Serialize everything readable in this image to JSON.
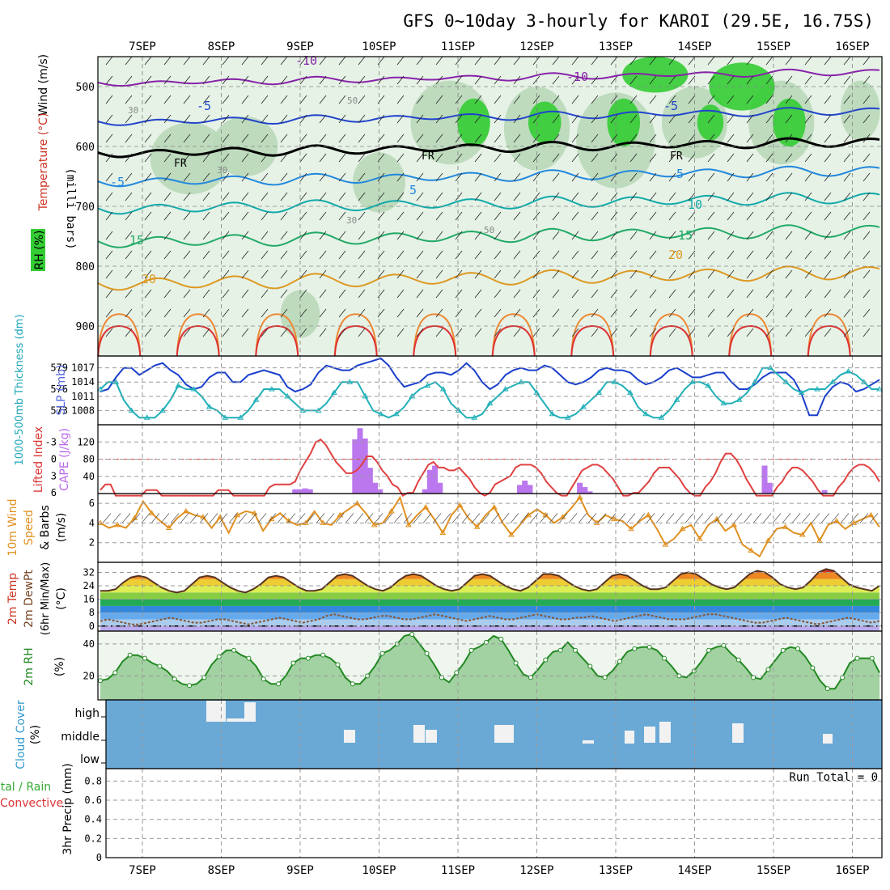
{
  "title": "GFS 0~10day 3-hourly for KAROI (29.5E, 16.75S)",
  "days": [
    "7SEP",
    "8SEP",
    "9SEP",
    "10SEP",
    "11SEP",
    "12SEP",
    "13SEP",
    "14SEP",
    "15SEP",
    "16SEP"
  ],
  "colors": {
    "frame": "#000000",
    "grid": "#9a9a9a",
    "rh_light": "#e6f2e6",
    "rh_mid": "#b9d8b9",
    "rh_dark": "#7fbf7f",
    "rh_high": "#33cc33",
    "cloud_bg": "#6aa9d6",
    "cape_bar": "#bb77ee",
    "li_line": "#e04040",
    "slp_line": "#1a3fcc",
    "thick_line": "#20b0b8",
    "wind_line": "#e09020",
    "rh2m_fill": "#8ec98e",
    "rh2m_line": "#228822"
  },
  "chart_data": [
    {
      "panel": "pressure-cross-section",
      "type": "heatmap",
      "ylabel_parts": [
        "Wind (m/s)",
        "Temperature (°C)",
        "RH (%)"
      ],
      "ylabel2": "(milli bars)",
      "y_ticks": [
        500,
        600,
        700,
        800,
        900
      ],
      "ylim": [
        450,
        950
      ],
      "temperature_contour_labels": [
        "-10",
        "-10",
        "-5",
        "-5",
        "-5",
        "5",
        "5",
        "10",
        "15",
        "15",
        "20",
        "20"
      ],
      "rh_contour_labels": [
        "30",
        "30",
        "50",
        "50",
        "30"
      ],
      "freezing_labels": [
        "FR",
        "FR",
        "FR"
      ]
    },
    {
      "panel": "slp-thickness",
      "type": "line",
      "ylabel_left": "1000-500mb Thickness (dm)",
      "ylabel_right": "SLP (mb)",
      "left_ticks": [
        579,
        576,
        573
      ],
      "right_ticks": [
        1017,
        1014,
        1011,
        1008
      ],
      "ylim_slp": [
        1005,
        1019.5
      ],
      "series": [
        {
          "name": "SLP (mb)",
          "values": [
            1012,
            1012.5,
            1015,
            1017,
            1017,
            1015.5,
            1016.5,
            1017.5,
            1018,
            1016.5,
            1015.5,
            1013.5,
            1012.5,
            1013,
            1015,
            1016,
            1016,
            1014,
            1014,
            1015.5,
            1016,
            1016.5,
            1016,
            1015.5,
            1013,
            1012,
            1012.5,
            1013.5,
            1016,
            1017.5,
            1017,
            1016.5,
            1016.5,
            1017.5,
            1018,
            1018.5,
            1019,
            1017.5,
            1015,
            1013,
            1013.5,
            1014,
            1015.5,
            1016,
            1016,
            1015.5,
            1016.5,
            1018,
            1016.5,
            1014,
            1012.5,
            1013.5,
            1015.5,
            1016.5,
            1017,
            1016.5,
            1016.5,
            1017.5,
            1017,
            1015.5,
            1014,
            1013.5,
            1014,
            1015,
            1016.5,
            1017,
            1016.5,
            1016.5,
            1016,
            1014.5,
            1013.5,
            1014,
            1015,
            1016.5,
            1017,
            1016,
            1015,
            1015,
            1015.5,
            1016,
            1016,
            1014,
            1012.5,
            1012.5,
            1013.5,
            1015,
            1016,
            1016,
            1016,
            1014.5,
            1011.5,
            1007,
            1007,
            1011,
            1013,
            1014,
            1013.5,
            1012,
            1012.5,
            1013.5,
            1014.5
          ]
        },
        {
          "name": "Thickness (dm)",
          "values": [
            576,
            577,
            577,
            574.5,
            573,
            572,
            572,
            572,
            573,
            574.5,
            576.5,
            576,
            576,
            575,
            573.5,
            573,
            572,
            572,
            572,
            573,
            574.5,
            576,
            576,
            576,
            575,
            574,
            573,
            573,
            573,
            574,
            575.5,
            577,
            577,
            577,
            575,
            573,
            572.5,
            572,
            572.5,
            573.5,
            575,
            576,
            576.5,
            577,
            576,
            574,
            573,
            572,
            572,
            572.5,
            574,
            575,
            576,
            576.5,
            577,
            577,
            575.5,
            574,
            572.5,
            572,
            572,
            572.5,
            573.5,
            574.5,
            575.5,
            577,
            577,
            576.5,
            575.5,
            573.5,
            572.5,
            572,
            572,
            573,
            574.5,
            576,
            577,
            577,
            576.5,
            575,
            574,
            574,
            574.5,
            575.5,
            577,
            579,
            579,
            578,
            577,
            576,
            575.5,
            576,
            576,
            576,
            577,
            578,
            578.5,
            578,
            577,
            576,
            576
          ]
        }
      ]
    },
    {
      "panel": "lifted-index-cape",
      "type": "bar",
      "ylabel_left": "Lifted Index",
      "ylabel_right": "CAPE (J/kg)",
      "li_ticks": [
        -3,
        0,
        3,
        6
      ],
      "cape_ticks": [
        40,
        80,
        120
      ],
      "ylim_cape": [
        0,
        160
      ],
      "series": [
        {
          "name": "CAPE (J/kg)",
          "values": [
            0,
            0,
            0,
            0,
            0,
            0,
            0,
            0,
            0,
            0,
            0,
            0,
            0,
            0,
            0,
            0,
            0,
            0,
            0,
            0,
            0,
            0,
            0,
            0,
            0,
            0,
            0,
            0,
            0,
            0,
            0,
            0,
            0,
            0,
            0,
            0,
            0,
            0,
            0,
            10,
            10,
            12,
            10,
            0,
            0,
            0,
            0,
            0,
            0,
            0,
            0,
            126,
            152,
            128,
            60,
            25,
            10,
            0,
            0,
            0,
            0,
            0,
            0,
            0,
            0,
            10,
            55,
            65,
            25,
            0,
            0,
            0,
            0,
            0,
            0,
            0,
            0,
            0,
            0,
            0,
            0,
            0,
            0,
            0,
            20,
            30,
            20,
            0,
            0,
            0,
            0,
            0,
            0,
            0,
            0,
            0,
            25,
            15,
            5,
            0,
            0,
            0,
            0,
            0,
            0,
            0,
            0,
            0,
            0,
            0,
            0,
            0,
            0,
            0,
            0,
            0,
            0,
            0,
            0,
            0,
            0,
            0,
            0,
            0,
            0,
            0,
            0,
            0,
            0,
            0,
            0,
            0,
            0,
            65,
            25,
            0,
            0,
            0,
            0,
            0,
            0,
            0,
            0,
            0,
            0,
            8,
            0,
            0,
            0,
            0,
            0,
            0,
            0,
            0,
            0,
            0,
            0
          ]
        },
        {
          "name": "Lifted Index",
          "values": [
            5.5,
            4.5,
            4.5,
            6.5,
            6.5,
            6.5,
            6.5,
            6.5,
            6.5,
            5.5,
            5.5,
            5.5,
            6.5,
            6.5,
            6.5,
            6.5,
            6.5,
            6.5,
            6.5,
            6.5,
            6.5,
            6.5,
            6.5,
            5.5,
            5.5,
            5.5,
            6.5,
            6.5,
            6.5,
            6.5,
            6.5,
            6.5,
            6.5,
            5,
            4.5,
            4.5,
            4.5,
            4.5,
            4,
            2,
            0.5,
            -1,
            -3,
            -3.5,
            -2.5,
            -1,
            0.5,
            1.5,
            2.5,
            2.5,
            2,
            1,
            -0.5,
            -0.5,
            0.5,
            2,
            3,
            4.5,
            5,
            6.5,
            6,
            6,
            4,
            2.5,
            1,
            0.5,
            1.5,
            1.5,
            2,
            2,
            1.5,
            2.5,
            3.5,
            5,
            6,
            6.5,
            6,
            4.5,
            4,
            3.5,
            3,
            1.5,
            1,
            1,
            1,
            1.5,
            2.5,
            4,
            5,
            6,
            6.5,
            6.5,
            5,
            3.5,
            2,
            1.5,
            1,
            1,
            1.5,
            2.5,
            3.5,
            5,
            6.5,
            6.5,
            6,
            6,
            5,
            4,
            2.5,
            1.5,
            1.5,
            1.5,
            2.5,
            3.5,
            5,
            6,
            6.5,
            6.5,
            5,
            4,
            2.5,
            0.5,
            -1,
            -1,
            0,
            1.5,
            3.5,
            5,
            6.5,
            6.5,
            6.5,
            6.5,
            5,
            4,
            2.5,
            1.5,
            1.5,
            2,
            3,
            4,
            5.5,
            6.5,
            6.5,
            6.5,
            5,
            4,
            2.5,
            1.5,
            1,
            1,
            1.5,
            2.5,
            4
          ]
        }
      ]
    },
    {
      "panel": "10m-wind",
      "type": "line",
      "ylabel_parts": [
        "10m Wind",
        "Speed",
        "& Barbs",
        "(m/s)"
      ],
      "y_ticks": [
        2,
        4,
        6
      ],
      "ylim": [
        0,
        7
      ],
      "series": [
        {
          "name": "10m Wind Speed",
          "values": [
            4,
            3.5,
            3.8,
            3.5,
            4.5,
            6.2,
            5,
            4.2,
            3.5,
            4.5,
            5.2,
            4.8,
            4.6,
            3.5,
            4.6,
            3,
            4.8,
            5.2,
            5,
            3.2,
            4.4,
            5,
            4.2,
            3.8,
            4,
            5.2,
            4,
            3.8,
            4.8,
            5.4,
            6,
            5,
            3.8,
            4,
            5.2,
            6.6,
            3.8,
            4.8,
            5.6,
            4.4,
            3,
            4.8,
            5.8,
            4.5,
            3.6,
            4.8,
            5.6,
            4,
            2.8,
            3.8,
            4.8,
            5.4,
            4.8,
            4,
            4.6,
            5.5,
            6.6,
            4.8,
            4,
            4.8,
            4.4,
            4.2,
            3.4,
            4.2,
            4.8,
            3.4,
            1.8,
            2.4,
            3.4,
            3.8,
            2.4,
            3.8,
            4.4,
            3.2,
            3.8,
            1.8,
            1.2,
            0.6,
            2.2,
            3.4,
            3.6,
            3,
            2.8,
            4,
            2.2,
            3.8,
            4.2,
            3.4,
            4,
            4.4,
            4.8,
            3.6
          ]
        }
      ]
    },
    {
      "panel": "2m-temp-dewpt",
      "type": "area",
      "ylabel_parts": [
        "2m Temp",
        "2m DewPt",
        "(6hr Min/Max)",
        "(°C)"
      ],
      "y_ticks": [
        0,
        8,
        16,
        24,
        32
      ],
      "ylim": [
        -3,
        38
      ],
      "series": [
        {
          "name": "2m Temp",
          "values": [
            21,
            21,
            22,
            26,
            29,
            30,
            29,
            26,
            23,
            21,
            20,
            21,
            25,
            29,
            30,
            29,
            26,
            23,
            21,
            20,
            22,
            25,
            29,
            30,
            29,
            26,
            23,
            21,
            21,
            22,
            26,
            30,
            31,
            30,
            27,
            24,
            22,
            21,
            23,
            27,
            30,
            31,
            30,
            27,
            24,
            22,
            21,
            22,
            26,
            30,
            31,
            30,
            27,
            24,
            22,
            21,
            23,
            27,
            31,
            31,
            30,
            27,
            24,
            22,
            21,
            22,
            26,
            30,
            31,
            30,
            27,
            24,
            22,
            22,
            23,
            27,
            31,
            32,
            31,
            28,
            25,
            23,
            22,
            23,
            27,
            31,
            33,
            32,
            29,
            25,
            23,
            22,
            23,
            27,
            32,
            34,
            33,
            29,
            25,
            23,
            22,
            21,
            24
          ]
        },
        {
          "name": "2m DewPt",
          "values": [
            3,
            4,
            3,
            2,
            1,
            1,
            2,
            3,
            4,
            5,
            4,
            3,
            2,
            2,
            3,
            4,
            4,
            3,
            2,
            1,
            2,
            3,
            4,
            5,
            4,
            3,
            2,
            3,
            4,
            6,
            7,
            6,
            5,
            4,
            4,
            5,
            6,
            6,
            5,
            4,
            4,
            5,
            6,
            7,
            6,
            5,
            4,
            3,
            4,
            5,
            6,
            5,
            4,
            4,
            5,
            6,
            7,
            6,
            5,
            4,
            4,
            5,
            5,
            6,
            5,
            4,
            3,
            4,
            5,
            6,
            7,
            6,
            5,
            4,
            4,
            4,
            5,
            6,
            7,
            7,
            6,
            5,
            4,
            3,
            2,
            2,
            3,
            4,
            5,
            4,
            3,
            2,
            1,
            2,
            3,
            4,
            5,
            4,
            3,
            2,
            3
          ]
        }
      ]
    },
    {
      "panel": "2m-rh",
      "type": "area",
      "ylabel_parts": [
        "2m RH",
        "(%)"
      ],
      "y_ticks": [
        20,
        40
      ],
      "ylim": [
        5,
        48
      ],
      "series": [
        {
          "name": "2m RH",
          "values": [
            17,
            18,
            22,
            29,
            33,
            33,
            31,
            28,
            26,
            23,
            18,
            15,
            14,
            15,
            19,
            27,
            32,
            36,
            36,
            33,
            31,
            26,
            18,
            15,
            15,
            20,
            28,
            31,
            31,
            33,
            33,
            31,
            27,
            19,
            15,
            15,
            20,
            26,
            34,
            36,
            40,
            45,
            46,
            40,
            34,
            27,
            19,
            16,
            22,
            28,
            36,
            38,
            41,
            45,
            43,
            36,
            28,
            21,
            19,
            24,
            30,
            35,
            36,
            41,
            36,
            31,
            26,
            20,
            19,
            23,
            29,
            35,
            37,
            38,
            38,
            36,
            31,
            26,
            20,
            19,
            23,
            29,
            36,
            38,
            39,
            34,
            30,
            25,
            19,
            18,
            24,
            30,
            36,
            38,
            37,
            32,
            25,
            17,
            12,
            12,
            19,
            28,
            31,
            31,
            31,
            22
          ]
        }
      ]
    },
    {
      "panel": "cloud-cover",
      "type": "bar",
      "ylabel_parts": [
        "Cloud Cover",
        "(%)"
      ],
      "y_labels": [
        "high",
        "middle",
        "low"
      ]
    },
    {
      "panel": "3hr-precip",
      "type": "bar",
      "ylabel_parts": [
        "Total / Rain",
        "Convective",
        "3hr Precip (mm)"
      ],
      "y_ticks": [
        0,
        0.2,
        0.4,
        0.6,
        0.8
      ],
      "ylim": [
        0,
        0.93
      ],
      "run_total": "Run Total = 0",
      "values": []
    }
  ]
}
